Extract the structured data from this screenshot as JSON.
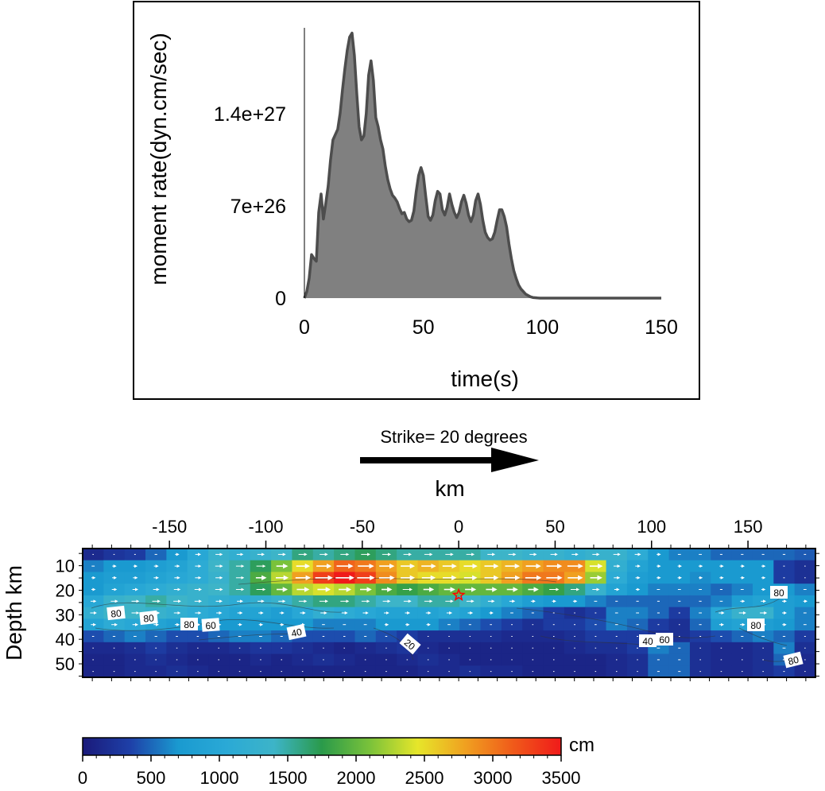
{
  "chart_data": [
    {
      "type": "area",
      "title": "",
      "xlabel": "time(s)",
      "ylabel": "moment rate(dyn.cm/sec)",
      "xlim": [
        0,
        150
      ],
      "ylim": [
        0,
        2.05e+27
      ],
      "x_ticks": [
        0,
        50,
        100,
        150
      ],
      "x_tick_labels": [
        "0",
        "50",
        "100",
        "150"
      ],
      "y_ticks": [
        0,
        7e+26,
        1.4e+27
      ],
      "y_tick_labels": [
        "0",
        "7e+26",
        "1.4e+27"
      ],
      "fill_color": "#808080",
      "line_color": "#4d4d4d",
      "series": [
        {
          "x": [
            0,
            1,
            2,
            3,
            4,
            5,
            6,
            7,
            8,
            9,
            10,
            11,
            12,
            13,
            14,
            15,
            16,
            17,
            18,
            19,
            20,
            21,
            22,
            23,
            24,
            25,
            26,
            27,
            28,
            29,
            30,
            31,
            32,
            33,
            34,
            35,
            36,
            37,
            38,
            39,
            40,
            41,
            42,
            43,
            44,
            45,
            46,
            47,
            48,
            49,
            50,
            51,
            52,
            53,
            54,
            55,
            56,
            57,
            58,
            59,
            60,
            61,
            62,
            63,
            64,
            65,
            66,
            67,
            68,
            69,
            70,
            71,
            72,
            73,
            74,
            75,
            76,
            77,
            78,
            79,
            80,
            81,
            82,
            83,
            84,
            85,
            86,
            87,
            88,
            89,
            90,
            91,
            92,
            93,
            94,
            95,
            96,
            97,
            98,
            99,
            100,
            101,
            102,
            103,
            104,
            105,
            106,
            107,
            108,
            109,
            110,
            111,
            112,
            113,
            114,
            115,
            120,
            130,
            140,
            150
          ],
          "values": [
            0,
            5e+25,
            1.5e+26,
            3.3e+26,
            3e+26,
            2.8e+26,
            6.5e+26,
            7.9e+26,
            6e+26,
            7.2e+26,
            8.5e+26,
            1.05e+27,
            1.2e+27,
            1.24e+27,
            1.28e+27,
            1.4e+27,
            1.58e+27,
            1.74e+27,
            1.88e+27,
            1.98e+27,
            2.01e+27,
            1.84e+27,
            1.55e+27,
            1.3e+27,
            1.2e+27,
            1.23e+27,
            1.4e+27,
            1.69e+27,
            1.8e+27,
            1.65e+27,
            1.37e+27,
            1.3e+27,
            1.2e+27,
            1.13e+27,
            1e+27,
            9e+26,
            8.3e+26,
            7.8e+26,
            7.6e+26,
            7.3e+26,
            6.8e+26,
            6.4e+26,
            6.5e+26,
            6e+26,
            5.8e+26,
            5.9e+26,
            6.6e+26,
            8.1e+26,
            9.3e+26,
            9.9e+26,
            9.3e+26,
            7.7e+26,
            6.2e+26,
            5.9e+26,
            6.3e+26,
            7.4e+26,
            8.1e+26,
            7.9e+26,
            6.7e+26,
            6.3e+26,
            6.9e+26,
            7.9e+26,
            7.1e+26,
            6.5e+26,
            6.1e+26,
            6.5e+26,
            7.3e+26,
            7.8e+26,
            7.2e+26,
            6.3e+26,
            5.8e+26,
            6.3e+26,
            7.4e+26,
            7.9e+26,
            7.1e+26,
            5.9e+26,
            5e+26,
            4.6e+26,
            4.4e+26,
            4.5e+26,
            5e+26,
            5.9e+26,
            6.7e+26,
            6.7e+26,
            6.2e+26,
            5.4e+26,
            4.1e+26,
            3e+26,
            2.1e+26,
            1.5e+26,
            1e+26,
            7e+25,
            5e+25,
            3e+25,
            2e+25,
            1e+25,
            5e+24,
            3e+24,
            1e+24,
            0,
            0,
            0,
            0,
            0,
            0,
            0,
            0,
            0,
            0,
            0,
            0,
            0,
            0,
            0,
            0,
            0,
            0,
            0,
            0,
            0
          ]
        }
      ]
    },
    {
      "type": "heatmap",
      "title": "Strike= 20 degrees",
      "xlabel": "km",
      "ylabel": "Depth km",
      "colorbar_label": "cm",
      "x_ticks": [
        -150,
        -100,
        -50,
        0,
        50,
        100,
        150
      ],
      "x_tick_labels": [
        "-150",
        "-100",
        "-50",
        "0",
        "50",
        "100",
        "150"
      ],
      "y_ticks": [
        10,
        20,
        30,
        40,
        50
      ],
      "y_tick_labels": [
        "10",
        "20",
        "30",
        "40",
        "50"
      ],
      "x_range_km": [
        -195,
        185
      ],
      "depth_range_km": [
        3,
        55.5
      ],
      "cell_width_km": 12,
      "cell_depth_km": 5,
      "colorbar_ticks": [
        0,
        500,
        1000,
        1500,
        2000,
        2500,
        3000,
        3500
      ],
      "colorbar_tick_labels": [
        "0",
        "500",
        "1000",
        "1500",
        "2000",
        "2500",
        "3000",
        "3500"
      ],
      "color_range": [
        0,
        3500
      ],
      "colormap": [
        "#1a1a7a",
        "#1e40a8",
        "#1a9ad0",
        "#2aa9d6",
        "#3db4c8",
        "#2a9a4a",
        "#7ac23a",
        "#e6e62a",
        "#f0a020",
        "#f05a1a",
        "#f01a1a"
      ],
      "hypocenter": {
        "x_km": 0,
        "depth_km": 22,
        "color": "#ff0000"
      },
      "contour_labels": [
        "80",
        "80",
        "80",
        "60",
        "40",
        "20",
        "40",
        "60",
        "80",
        "80",
        "80"
      ],
      "slip_rows_cm": [
        [
          150,
          250,
          300,
          500,
          700,
          1000,
          1300,
          1200,
          1300,
          1400,
          1600,
          1500,
          1600,
          1700,
          1600,
          1500,
          1500,
          1500,
          1500,
          1400,
          1400,
          1300,
          1300,
          1200,
          1300,
          1300,
          1100,
          700,
          600,
          600,
          500,
          500,
          500,
          500,
          450
        ],
        [
          600,
          700,
          700,
          800,
          900,
          1100,
          1400,
          1500,
          1700,
          2100,
          2500,
          2800,
          3100,
          3000,
          2800,
          2600,
          2700,
          2600,
          2500,
          2600,
          2700,
          2800,
          2900,
          2900,
          2400,
          1200,
          900,
          700,
          700,
          700,
          700,
          700,
          700,
          300,
          200
        ],
        [
          700,
          800,
          800,
          900,
          1000,
          1100,
          1300,
          1500,
          1900,
          2300,
          2800,
          3300,
          3500,
          3300,
          2900,
          2600,
          2500,
          2500,
          2400,
          2600,
          2800,
          3000,
          3000,
          2800,
          2200,
          1100,
          800,
          700,
          700,
          650,
          700,
          700,
          700,
          300,
          200
        ],
        [
          700,
          900,
          1000,
          1100,
          1200,
          1300,
          1400,
          1500,
          1700,
          2000,
          2300,
          2400,
          2300,
          2100,
          1900,
          1800,
          1900,
          2000,
          2000,
          2000,
          2000,
          1900,
          1800,
          1600,
          1300,
          900,
          700,
          600,
          600,
          600,
          500,
          600,
          700,
          700,
          600
        ],
        [
          1000,
          1300,
          1400,
          1500,
          1400,
          1300,
          1200,
          1100,
          1200,
          1300,
          1500,
          1600,
          1600,
          1500,
          1400,
          1400,
          1500,
          1500,
          1400,
          1200,
          1000,
          800,
          700,
          700,
          600,
          500,
          500,
          500,
          500,
          500,
          600,
          800,
          900,
          800,
          700
        ],
        [
          1200,
          1400,
          1400,
          1300,
          1200,
          1100,
          1000,
          900,
          900,
          800,
          1000,
          1200,
          1100,
          1000,
          900,
          900,
          900,
          1000,
          900,
          700,
          600,
          500,
          300,
          200,
          300,
          600,
          600,
          500,
          300,
          600,
          1000,
          1300,
          1300,
          800,
          600
        ],
        [
          900,
          1100,
          1000,
          900,
          800,
          700,
          700,
          700,
          700,
          700,
          700,
          600,
          600,
          600,
          700,
          700,
          700,
          600,
          500,
          400,
          300,
          200,
          300,
          300,
          400,
          600,
          500,
          300,
          200,
          500,
          800,
          900,
          800,
          700,
          600
        ],
        [
          400,
          500,
          600,
          500,
          400,
          400,
          500,
          600,
          600,
          500,
          400,
          400,
          400,
          500,
          400,
          300,
          200,
          200,
          200,
          200,
          150,
          150,
          150,
          200,
          300,
          300,
          300,
          200,
          200,
          300,
          400,
          500,
          600,
          500,
          300
        ],
        [
          150,
          150,
          200,
          300,
          200,
          150,
          150,
          200,
          250,
          250,
          200,
          150,
          100,
          150,
          200,
          250,
          150,
          100,
          100,
          100,
          100,
          100,
          100,
          150,
          200,
          200,
          300,
          600,
          500,
          200,
          150,
          150,
          200,
          600,
          200
        ],
        [
          100,
          100,
          150,
          200,
          150,
          100,
          100,
          100,
          150,
          100,
          150,
          200,
          150,
          100,
          100,
          150,
          200,
          150,
          100,
          100,
          100,
          100,
          100,
          100,
          100,
          150,
          200,
          500,
          500,
          200,
          150,
          150,
          200,
          500,
          150
        ],
        [
          100,
          100,
          150,
          150,
          200,
          150,
          100,
          100,
          100,
          100,
          100,
          100,
          100,
          100,
          100,
          100,
          150,
          150,
          200,
          150,
          150,
          100,
          100,
          100,
          100,
          150,
          200,
          500,
          500,
          200,
          150,
          150,
          200,
          300,
          150
        ]
      ]
    }
  ]
}
